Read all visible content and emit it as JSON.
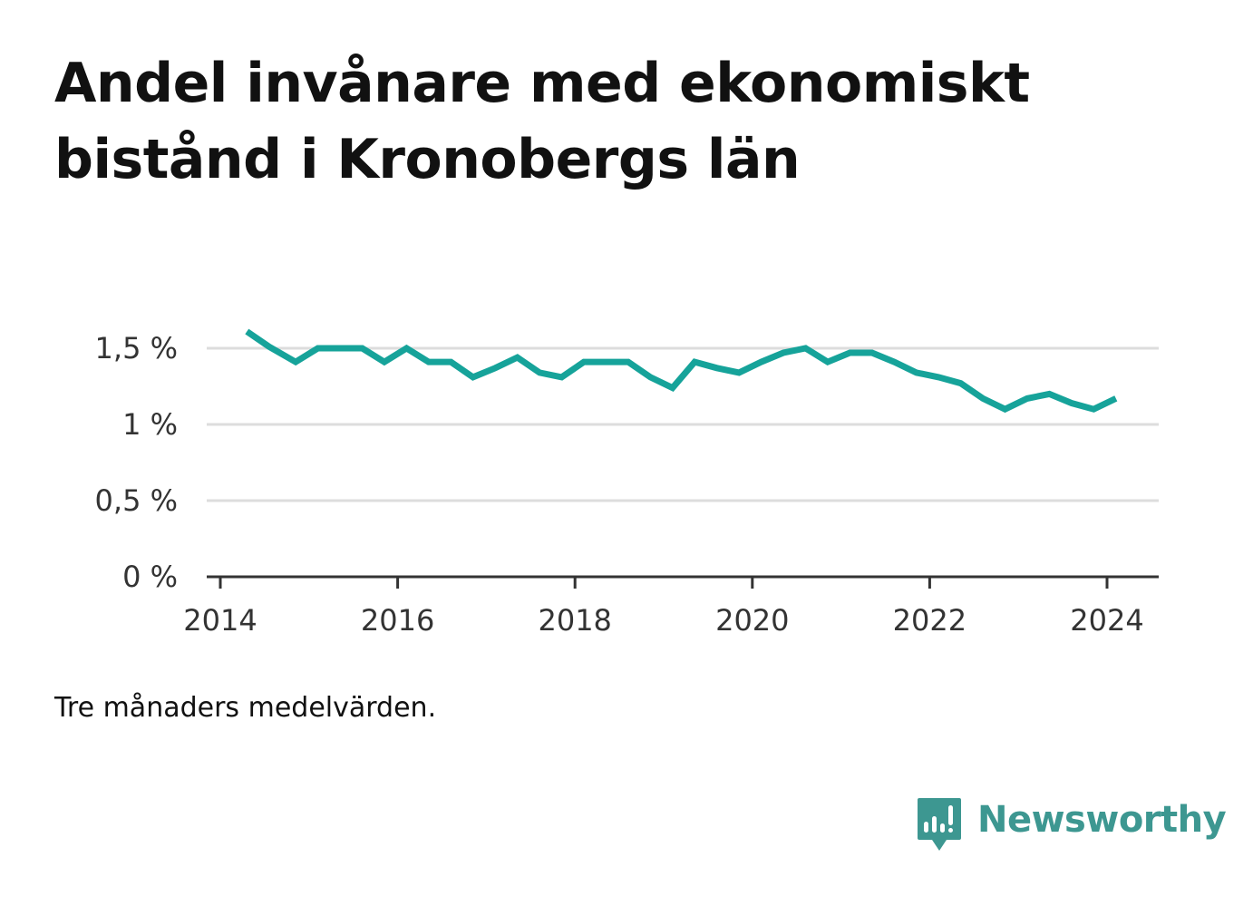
{
  "title": "Andel invånare med ekonomiskt bistånd i Kronobergs län",
  "note": "Tre månaders medelvärden.",
  "brand": {
    "name": "Newsworthy",
    "color": "#3d9791",
    "icon": "bar-chart-speech-bubble-icon"
  },
  "chart_data": {
    "type": "line",
    "title": "Andel invånare med ekonomiskt bistånd i Kronobergs län",
    "xlabel": "",
    "ylabel": "",
    "xlim": [
      2014,
      2024.6
    ],
    "ylim": [
      0,
      1.5
    ],
    "y_ticks": [
      0,
      0.5,
      1,
      1.5
    ],
    "y_tick_labels": [
      "0 %",
      "0,5 %",
      "1 %",
      "1,5 %"
    ],
    "x_ticks": [
      2014,
      2016,
      2018,
      2020,
      2022,
      2024
    ],
    "x_tick_labels": [
      "2014",
      "2016",
      "2018",
      "2020",
      "2022",
      "2024"
    ],
    "grid": true,
    "legend": "none",
    "line_color": "#16a39a",
    "series": [
      {
        "x": [
          2014.3,
          2014.55,
          2014.85,
          2015.1,
          2015.35,
          2015.6,
          2015.85,
          2016.1,
          2016.35,
          2016.6,
          2016.85,
          2017.1,
          2017.35,
          2017.6,
          2017.85,
          2018.1,
          2018.35,
          2018.6,
          2018.85,
          2019.1,
          2019.35,
          2019.6,
          2019.85,
          2020.1,
          2020.35,
          2020.6,
          2020.85,
          2021.1,
          2021.35,
          2021.6,
          2021.85,
          2022.1,
          2022.35,
          2022.6,
          2022.85,
          2023.1,
          2023.35,
          2023.6,
          2023.85,
          2024.1
        ],
        "y": [
          1.61,
          1.51,
          1.41,
          1.5,
          1.5,
          1.5,
          1.41,
          1.5,
          1.41,
          1.41,
          1.31,
          1.37,
          1.44,
          1.34,
          1.31,
          1.41,
          1.41,
          1.41,
          1.31,
          1.24,
          1.41,
          1.37,
          1.34,
          1.41,
          1.47,
          1.5,
          1.41,
          1.47,
          1.47,
          1.41,
          1.34,
          1.31,
          1.27,
          1.17,
          1.1,
          1.17,
          1.2,
          1.14,
          1.1,
          1.17
        ]
      }
    ]
  }
}
